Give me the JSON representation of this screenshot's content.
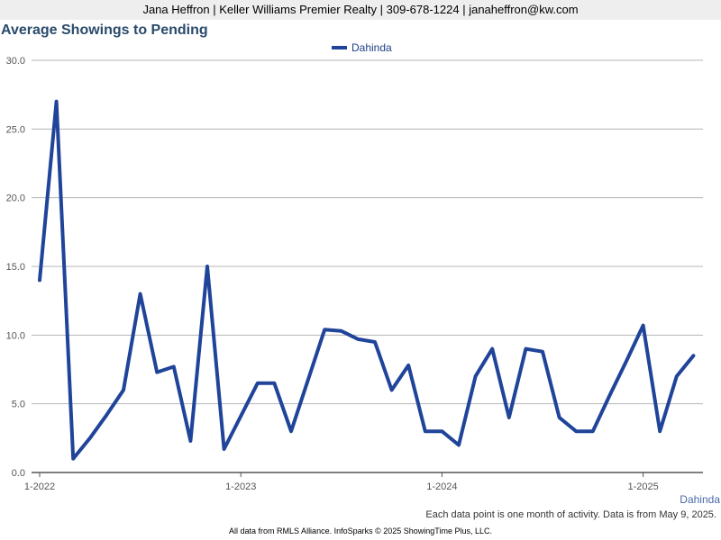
{
  "header": {
    "contact": "Jana Heffron | Keller Williams Premier Realty | 309-678-1224 | janaheffron@kw.com"
  },
  "chart_data": {
    "type": "line",
    "title": "Average Showings to Pending",
    "xlabel": "",
    "ylabel": "",
    "ylim": [
      0,
      30
    ],
    "yticks": [
      "0.0",
      "5.0",
      "10.0",
      "15.0",
      "20.0",
      "25.0",
      "30.0"
    ],
    "xticks": [
      "1-2022",
      "1-2023",
      "1-2024",
      "1-2025"
    ],
    "grid": true,
    "legend_position": "top-center",
    "series": [
      {
        "name": "Dahinda",
        "color": "#1f4499",
        "x": [
          "2022-01",
          "2022-02",
          "2022-03",
          "2022-04",
          "2022-05",
          "2022-06",
          "2022-07",
          "2022-08",
          "2022-09",
          "2022-10",
          "2022-11",
          "2022-12",
          "2023-01",
          "2023-02",
          "2023-03",
          "2023-04",
          "2023-05",
          "2023-06",
          "2023-07",
          "2023-08",
          "2023-09",
          "2023-10",
          "2023-11",
          "2023-12",
          "2024-01",
          "2024-02",
          "2024-03",
          "2024-04",
          "2024-05",
          "2024-06",
          "2024-07",
          "2024-08",
          "2024-09",
          "2024-10",
          "2024-11",
          "2024-12",
          "2025-01",
          "2025-02",
          "2025-03",
          "2025-04"
        ],
        "values": [
          14,
          27,
          1,
          2.5,
          4.2,
          6,
          13,
          7.3,
          7.7,
          2.3,
          15,
          1.7,
          4.1,
          6.5,
          6.5,
          3,
          6.7,
          10.4,
          10.3,
          9.7,
          9.5,
          6,
          7.8,
          3,
          3,
          2,
          7,
          9,
          4,
          9,
          8.8,
          4,
          3,
          3,
          5.6,
          8.1,
          10.7,
          3,
          7,
          8.5
        ]
      }
    ]
  },
  "corner_label": "Dahinda",
  "footnote": "Each data point is one month of activity. Data is from May 9, 2025.",
  "footer": "All data from RMLS Alliance. InfoSparks © 2025 ShowingTime Plus, LLC."
}
